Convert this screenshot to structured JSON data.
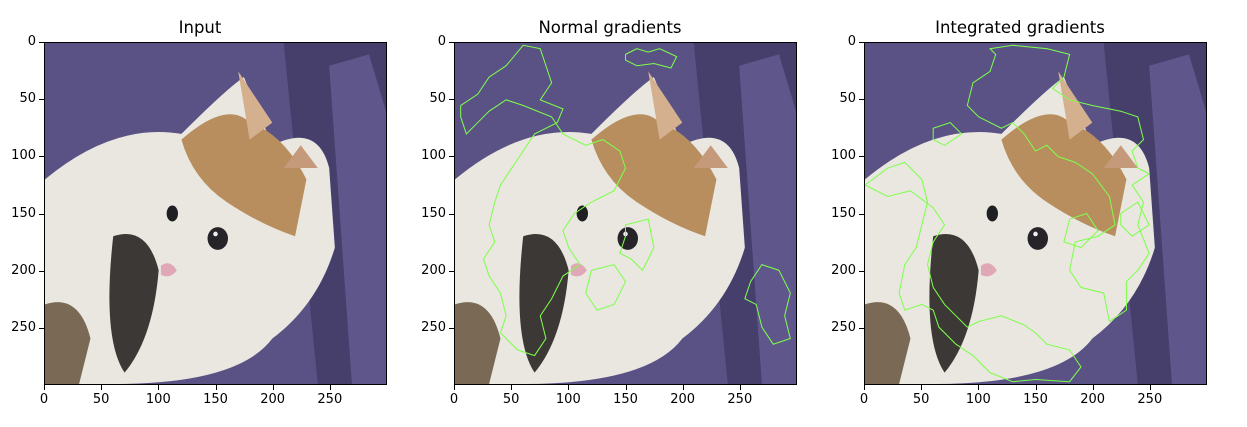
{
  "panels": [
    {
      "title": "Input",
      "overlay": false
    },
    {
      "title": "Normal gradients",
      "overlay": true
    },
    {
      "title": "Integrated gradients",
      "overlay": true
    }
  ],
  "axis": {
    "yticks": [
      "0",
      "50",
      "100",
      "150",
      "200",
      "250"
    ],
    "xticks": [
      "0",
      "50",
      "100",
      "150",
      "200",
      "250"
    ]
  },
  "colors": {
    "background": "#5a5285",
    "contour": "#7dff4a",
    "fur_white": "#e9e7df",
    "fur_orange": "#b88e5f"
  }
}
